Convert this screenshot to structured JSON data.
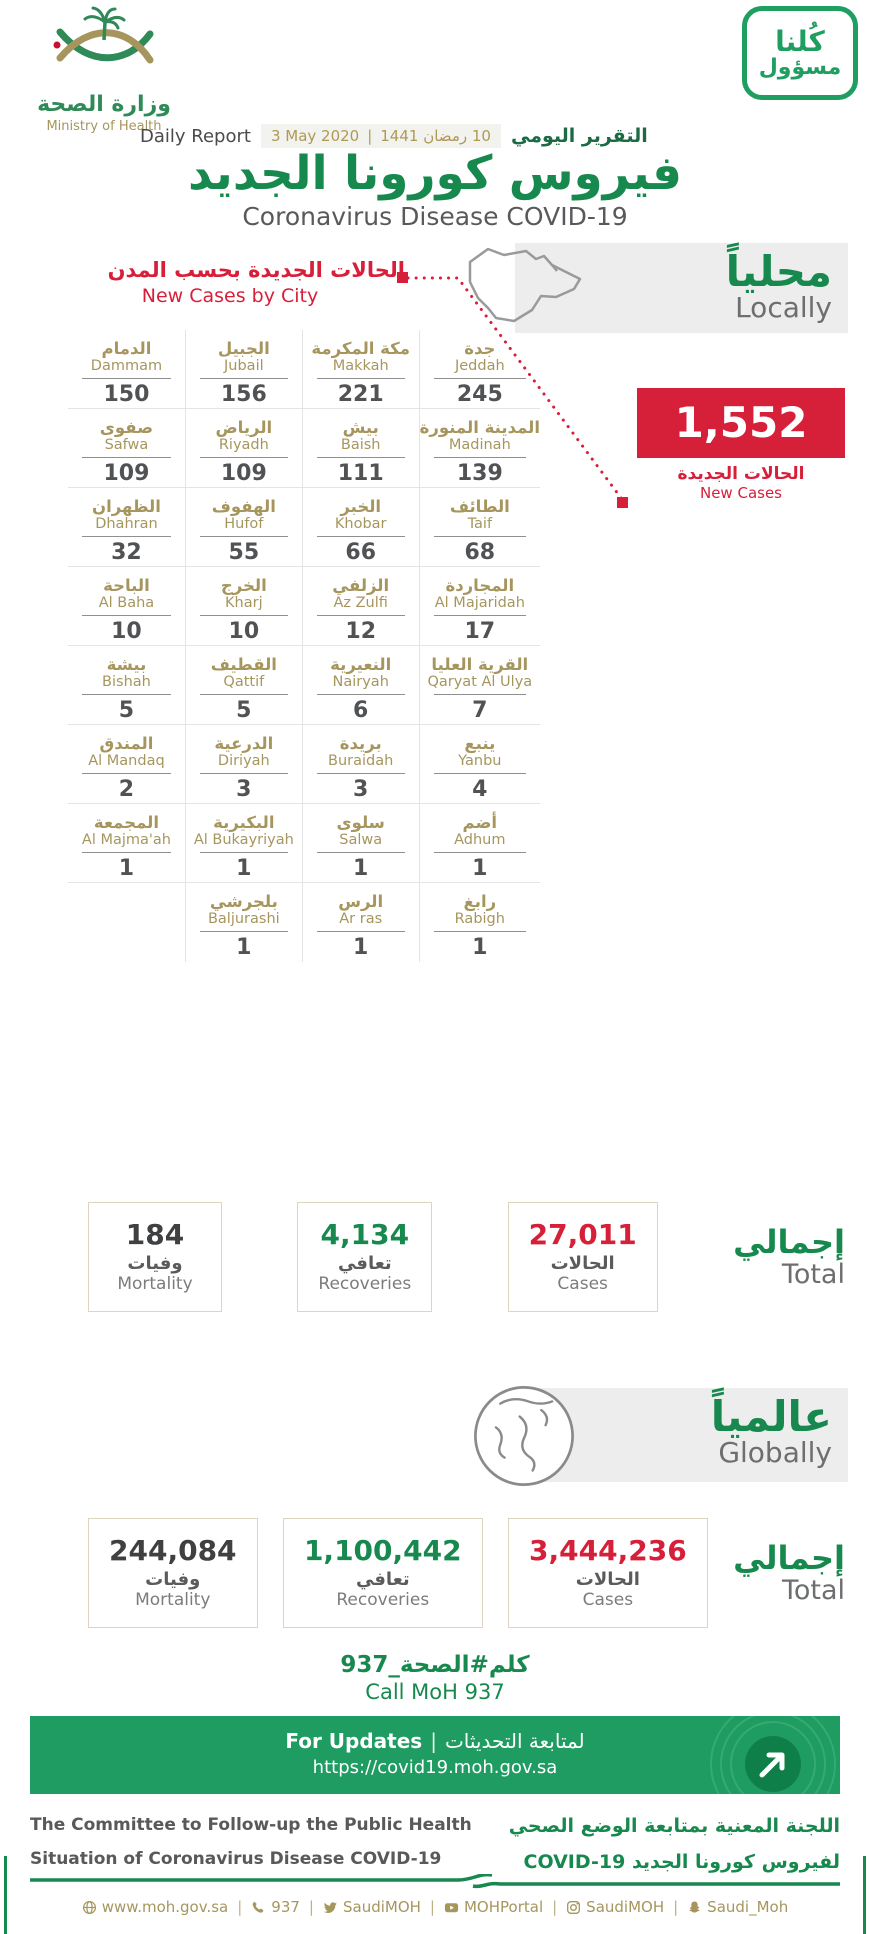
{
  "brand": {
    "ministry_ar": "وزارة الصحة",
    "ministry_en": "Ministry of Health",
    "badge_line1": "كُلنا",
    "badge_line2": "مسؤول"
  },
  "report_header": {
    "daily_report_en": "Daily Report",
    "date_gregorian": "3 May 2020",
    "date_separator": "|",
    "date_hijri_ar": "10 رمضان 1441",
    "daily_report_ar": "التقرير اليومي",
    "title_ar": "فيروس كورونا الجديد",
    "title_en": "Coronavirus Disease COVID-19"
  },
  "locally": {
    "section_ar": "محلياً",
    "section_en": "Locally",
    "new_cases_by_city_ar": "الحالات الجديدة بحسب المدن",
    "new_cases_by_city_en": "New Cases by City",
    "new_cases": {
      "value": "1,552",
      "label_ar": "الحالات الجديدة",
      "label_en": "New Cases"
    },
    "cities": [
      {
        "ar": "جدة",
        "en": "Jeddah",
        "value": "245"
      },
      {
        "ar": "مكة المكرمة",
        "en": "Makkah",
        "value": "221"
      },
      {
        "ar": "الجبيل",
        "en": "Jubail",
        "value": "156"
      },
      {
        "ar": "الدمام",
        "en": "Dammam",
        "value": "150"
      },
      {
        "ar": "المدينة المنورة",
        "en": "Madinah",
        "value": "139"
      },
      {
        "ar": "بيش",
        "en": "Baish",
        "value": "111"
      },
      {
        "ar": "الرياض",
        "en": "Riyadh",
        "value": "109"
      },
      {
        "ar": "صفوى",
        "en": "Safwa",
        "value": "109"
      },
      {
        "ar": "الطائف",
        "en": "Taif",
        "value": "68"
      },
      {
        "ar": "الخبر",
        "en": "Khobar",
        "value": "66"
      },
      {
        "ar": "الهفوف",
        "en": "Hufof",
        "value": "55"
      },
      {
        "ar": "الظهران",
        "en": "Dhahran",
        "value": "32"
      },
      {
        "ar": "المجاردة",
        "en": "Al Majaridah",
        "value": "17"
      },
      {
        "ar": "الزلفي",
        "en": "Az Zulfi",
        "value": "12"
      },
      {
        "ar": "الخرج",
        "en": "Kharj",
        "value": "10"
      },
      {
        "ar": "الباحة",
        "en": "Al Baha",
        "value": "10"
      },
      {
        "ar": "القرية العليا",
        "en": "Qaryat Al Ulya",
        "value": "7"
      },
      {
        "ar": "النعيرية",
        "en": "Nairyah",
        "value": "6"
      },
      {
        "ar": "القطيف",
        "en": "Qattif",
        "value": "5"
      },
      {
        "ar": "بيشة",
        "en": "Bishah",
        "value": "5"
      },
      {
        "ar": "ينبع",
        "en": "Yanbu",
        "value": "4"
      },
      {
        "ar": "بريدة",
        "en": "Buraidah",
        "value": "3"
      },
      {
        "ar": "الدرعية",
        "en": "Diriyah",
        "value": "3"
      },
      {
        "ar": "المندق",
        "en": "Al Mandaq",
        "value": "2"
      },
      {
        "ar": "أضم",
        "en": "Adhum",
        "value": "1"
      },
      {
        "ar": "سلوى",
        "en": "Salwa",
        "value": "1"
      },
      {
        "ar": "البكيرية",
        "en": "Al Bukayriyah",
        "value": "1"
      },
      {
        "ar": "المجمعة",
        "en": "Al Majma'ah",
        "value": "1"
      },
      {
        "ar": "رابغ",
        "en": "Rabigh",
        "value": "1"
      },
      {
        "ar": "الرس",
        "en": "Ar ras",
        "value": "1"
      },
      {
        "ar": "بلجرشي",
        "en": "Baljurashi",
        "value": "1"
      },
      {
        "ar": "",
        "en": "",
        "value": ""
      }
    ],
    "totals": {
      "label_ar": "إجمالي",
      "label_en": "Total",
      "mortality": {
        "value": "184",
        "label_ar": "وفيات",
        "label_en": "Mortality"
      },
      "recoveries": {
        "value": "4,134",
        "label_ar": "تعافي",
        "label_en": "Recoveries"
      },
      "cases": {
        "value": "27,011",
        "label_ar": "الحالات",
        "label_en": "Cases"
      }
    }
  },
  "globally": {
    "section_ar": "عالمياً",
    "section_en": "Globally",
    "totals": {
      "label_ar": "إجمالي",
      "label_en": "Total",
      "mortality": {
        "value": "244,084",
        "label_ar": "وفيات",
        "label_en": "Mortality"
      },
      "recoveries": {
        "value": "1,100,442",
        "label_ar": "تعافي",
        "label_en": "Recoveries"
      },
      "cases": {
        "value": "3,444,236",
        "label_ar": "الحالات",
        "label_en": "Cases"
      }
    }
  },
  "call_moh": {
    "ar": "كلم#الصحة_937",
    "en": "Call MoH 937"
  },
  "updates": {
    "en": "For Updates",
    "separator": "|",
    "ar": "لمتابعة التحديثات",
    "url": "https://covid19.moh.gov.sa"
  },
  "committee": {
    "en_line1": "The Committee to Follow-up the Public Health",
    "en_line2": "Situation of Coronavirus Disease COVID-19",
    "ar_line1": "اللجنة المعنية بمتابعة الوضع الصحي",
    "ar_line2": "لفيروس كورونا الجديد COVID-19"
  },
  "footer": {
    "separator": "|",
    "links": [
      {
        "icon": "globe-icon",
        "label": "www.moh.gov.sa"
      },
      {
        "icon": "phone-icon",
        "label": "937"
      },
      {
        "icon": "twitter-icon",
        "label": "SaudiMOH"
      },
      {
        "icon": "youtube-icon",
        "label": "MOHPortal"
      },
      {
        "icon": "instagram-icon",
        "label": "SaudiMOH"
      },
      {
        "icon": "snapchat-icon",
        "label": "Saudi_Moh"
      }
    ]
  },
  "colors": {
    "brand_green": "#17894e",
    "badge_green": "#1f9e61",
    "banner_green": "#1f9c62",
    "accent_red": "#d6203a",
    "gold": "#a6965e",
    "text_gray": "#58595b"
  }
}
